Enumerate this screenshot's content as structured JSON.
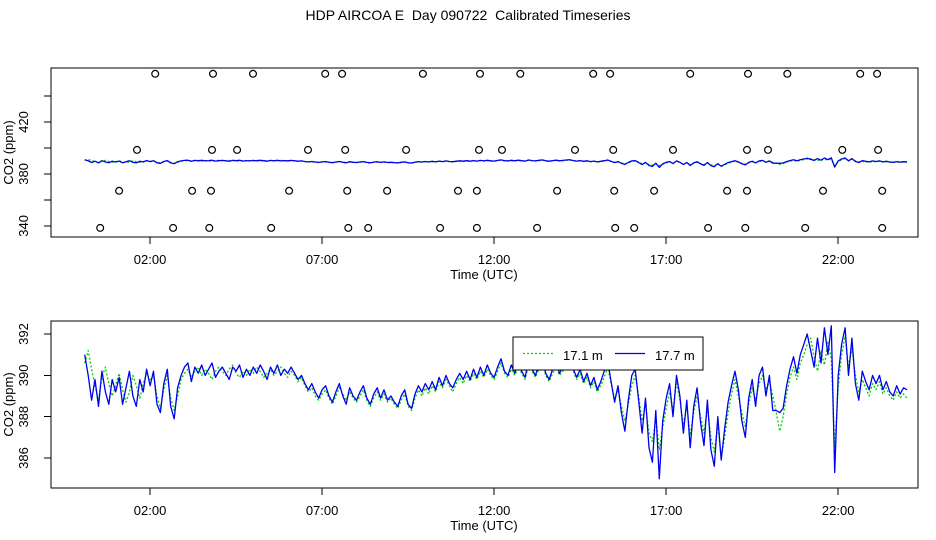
{
  "title": "HDP AIRCOA E  Day 090722  Calibrated Timeseries",
  "colors": {
    "series_17_1_m": "#00CD00",
    "series_17_7_m": "#0000EE",
    "axis": "#000000",
    "background": "#FFFFFF"
  },
  "series": [
    {
      "name": "17.1 m",
      "color": "#00CD00",
      "style": "dotted",
      "unit": "ppm",
      "t0": 0.1,
      "dt": 0.1,
      "values": [
        390.6,
        391.2,
        390.3,
        389.5,
        388.8,
        389.9,
        390.4,
        389.6,
        389.0,
        389.5,
        390.1,
        389.3,
        388.7,
        389.2,
        390.0,
        389.5,
        388.9,
        389.6,
        390.1,
        389.8,
        390.0,
        389.0,
        388.4,
        389.3,
        390.0,
        388.9,
        388.3,
        389.0,
        389.8,
        390.1,
        390.3,
        389.9,
        390.2,
        390.4,
        390.0,
        390.3,
        390.1,
        389.8,
        390.2,
        390.4,
        390.2,
        390.0,
        390.3,
        390.5,
        390.1,
        389.9,
        390.2,
        390.0,
        390.3,
        390.1,
        390.4,
        390.2,
        389.9,
        390.1,
        390.3,
        390.0,
        390.2,
        390.4,
        390.1,
        389.9,
        390.2,
        390.0,
        389.7,
        389.9,
        389.5,
        389.2,
        389.4,
        389.0,
        388.8,
        389.1,
        389.3,
        388.9,
        388.6,
        389.0,
        389.4,
        389.1,
        388.8,
        389.2,
        388.9,
        388.7,
        389.0,
        389.3,
        388.8,
        388.5,
        388.9,
        389.2,
        388.8,
        389.1,
        388.7,
        388.9,
        388.6,
        388.4,
        388.8,
        389.1,
        388.5,
        388.3,
        388.9,
        389.3,
        389.0,
        389.4,
        389.1,
        389.5,
        389.2,
        389.7,
        389.4,
        389.8,
        389.5,
        389.2,
        389.6,
        389.9,
        389.6,
        390.0,
        389.7,
        390.1,
        389.8,
        390.2,
        389.9,
        390.3,
        390.0,
        389.8,
        390.2,
        390.6,
        390.1,
        389.9,
        390.3,
        390.0,
        390.4,
        390.1,
        389.8,
        390.5,
        390.2,
        389.9,
        390.3,
        390.6,
        390.0,
        389.7,
        390.1,
        390.4,
        390.0,
        390.2,
        390.5,
        390.8,
        390.2,
        389.8,
        390.1,
        389.6,
        389.9,
        389.4,
        389.7,
        389.2,
        389.5,
        389.9,
        390.4,
        389.6,
        388.9,
        389.3,
        388.5,
        387.8,
        388.6,
        389.5,
        390.0,
        389.0,
        387.8,
        388.6,
        387.2,
        386.8,
        387.9,
        386.4,
        387.5,
        388.4,
        389.2,
        388.3,
        389.7,
        388.8,
        387.6,
        388.5,
        387.1,
        388.2,
        389.0,
        388.0,
        387.2,
        388.4,
        387.0,
        386.3,
        387.6,
        386.0,
        387.0,
        388.2,
        389.1,
        389.8,
        389.0,
        388.2,
        387.5,
        388.6,
        389.4,
        388.8,
        389.6,
        390.0,
        389.3,
        389.7,
        389.0,
        388.2,
        387.3,
        388.0,
        389.1,
        389.9,
        390.4,
        389.8,
        390.6,
        391.0,
        391.5,
        391.8,
        390.9,
        390.2,
        391.2,
        390.5,
        391.6,
        390.8,
        386.5,
        389.4,
        391.0,
        391.9,
        390.4,
        391.3,
        390.0,
        389.2,
        389.8,
        389.4,
        389.0,
        389.6,
        389.3,
        389.7,
        389.1,
        389.4,
        389.0,
        388.8,
        389.2,
        388.9,
        389.1,
        388.9
      ]
    },
    {
      "name": "17.7 m",
      "color": "#0000EE",
      "style": "solid",
      "unit": "ppm",
      "t0": 0.1,
      "dt": 0.1,
      "values": [
        391.0,
        390.0,
        388.8,
        389.8,
        388.5,
        390.2,
        389.2,
        388.6,
        389.8,
        389.2,
        389.9,
        388.6,
        389.4,
        390.2,
        389.0,
        388.5,
        389.8,
        389.2,
        390.3,
        389.5,
        390.2,
        388.6,
        388.2,
        389.6,
        390.3,
        388.5,
        387.9,
        389.4,
        390.0,
        390.4,
        390.6,
        389.7,
        390.4,
        390.1,
        390.5,
        390.0,
        390.3,
        390.6,
        389.9,
        390.2,
        390.4,
        390.1,
        389.8,
        390.4,
        390.2,
        390.5,
        389.9,
        390.3,
        390.0,
        390.4,
        390.1,
        390.5,
        390.2,
        389.8,
        390.4,
        390.1,
        390.5,
        390.0,
        390.3,
        390.1,
        390.4,
        390.1,
        389.8,
        390.0,
        389.6,
        389.3,
        389.6,
        389.2,
        388.9,
        389.3,
        389.5,
        389.0,
        388.7,
        389.2,
        389.6,
        389.0,
        388.6,
        389.4,
        389.0,
        388.8,
        389.2,
        389.5,
        388.9,
        388.6,
        389.1,
        389.4,
        388.9,
        389.3,
        388.8,
        389.0,
        388.7,
        388.5,
        389.0,
        389.3,
        388.6,
        388.4,
        389.1,
        389.5,
        389.2,
        389.6,
        389.3,
        389.7,
        389.3,
        389.9,
        389.5,
        390.0,
        389.6,
        389.4,
        389.8,
        390.1,
        389.8,
        390.2,
        389.8,
        390.3,
        389.9,
        390.4,
        390.0,
        390.5,
        390.1,
        389.9,
        390.4,
        390.8,
        390.2,
        390.0,
        390.5,
        390.1,
        390.6,
        390.2,
        389.9,
        390.7,
        390.3,
        390.0,
        390.5,
        390.8,
        390.1,
        389.8,
        390.3,
        390.6,
        390.1,
        390.4,
        390.7,
        391.0,
        390.3,
        389.9,
        390.3,
        389.7,
        390.1,
        389.5,
        389.9,
        389.3,
        389.7,
        390.2,
        390.7,
        389.7,
        388.7,
        389.5,
        388.2,
        387.3,
        388.8,
        390.0,
        390.3,
        388.8,
        387.2,
        388.9,
        386.5,
        385.8,
        388.3,
        385.0,
        387.8,
        388.9,
        389.6,
        388.0,
        390.0,
        389.0,
        387.2,
        388.8,
        386.5,
        388.5,
        389.4,
        387.7,
        386.6,
        388.8,
        386.4,
        385.6,
        388.0,
        385.9,
        387.4,
        388.7,
        389.5,
        390.2,
        389.3,
        387.8,
        387.0,
        388.9,
        389.8,
        388.5,
        390.0,
        390.4,
        389.0,
        390.0,
        388.3,
        388.3,
        388.2,
        388.4,
        389.5,
        390.3,
        390.9,
        390.1,
        391.0,
        391.5,
        392.0,
        391.2,
        390.4,
        391.8,
        390.6,
        392.3,
        391.0,
        392.4,
        385.3,
        390.0,
        391.5,
        392.3,
        390.0,
        391.8,
        389.6,
        388.8,
        390.2,
        389.7,
        389.3,
        390.0,
        389.6,
        390.0,
        389.3,
        389.7,
        389.2,
        389.0,
        389.5,
        389.1,
        389.4,
        389.3
      ]
    }
  ],
  "chart_data": [
    {
      "id": "calibrated-timeseries-overview",
      "type": "line",
      "xlabel": "Time (UTC)",
      "ylabel": "CO2 (ppm)",
      "xlim": [
        -0.88,
        24.32
      ],
      "ylim": [
        331.5,
        461.5
      ],
      "grid": false,
      "x_ticks": [
        {
          "t": 2,
          "label": "02:00"
        },
        {
          "t": 7,
          "label": "07:00"
        },
        {
          "t": 12,
          "label": "12:00"
        },
        {
          "t": 17,
          "label": "17:00"
        },
        {
          "t": 22,
          "label": "22:00"
        }
      ],
      "y_ticks": [
        {
          "v": 340,
          "label": "340"
        },
        {
          "v": 360,
          "label": ""
        },
        {
          "v": 380,
          "label": "380"
        },
        {
          "v": 400,
          "label": ""
        },
        {
          "v": 420,
          "label": "420"
        },
        {
          "v": 440,
          "label": ""
        }
      ],
      "calibration_circles": [
        {
          "level_ppm": 457.0,
          "times": [
            2.15,
            3.83,
            4.99,
            7.09,
            7.58,
            9.93,
            11.59,
            12.76,
            14.88,
            15.37,
            17.7,
            19.38,
            20.52,
            22.64,
            23.13
          ]
        },
        {
          "level_ppm": 398.5,
          "times": [
            1.62,
            3.8,
            4.53,
            6.59,
            7.67,
            9.44,
            11.56,
            12.23,
            14.35,
            15.46,
            17.2,
            19.35,
            19.96,
            22.12,
            23.16
          ]
        },
        {
          "level_ppm": 367.0,
          "times": [
            1.1,
            3.22,
            3.77,
            6.04,
            7.73,
            8.89,
            10.95,
            11.5,
            13.83,
            15.49,
            16.65,
            18.77,
            19.35,
            21.56,
            23.28
          ]
        },
        {
          "level_ppm": 338.5,
          "times": [
            0.55,
            2.67,
            3.72,
            5.52,
            7.76,
            8.34,
            10.43,
            11.5,
            13.25,
            15.52,
            16.07,
            18.22,
            19.3,
            21.04,
            23.28
          ]
        }
      ]
    },
    {
      "id": "calibrated-timeseries-detail",
      "type": "line",
      "xlabel": "Time (UTC)",
      "ylabel": "CO2 (ppm)",
      "xlim": [
        -0.88,
        24.32
      ],
      "ylim": [
        384.55,
        392.63
      ],
      "grid": false,
      "x_ticks": [
        {
          "t": 2,
          "label": "02:00"
        },
        {
          "t": 7,
          "label": "07:00"
        },
        {
          "t": 12,
          "label": "12:00"
        },
        {
          "t": 17,
          "label": "17:00"
        },
        {
          "t": 22,
          "label": "22:00"
        }
      ],
      "y_ticks": [
        {
          "v": 386,
          "label": "386"
        },
        {
          "v": 388,
          "label": "388"
        },
        {
          "v": 390,
          "label": "390"
        },
        {
          "v": 392,
          "label": "392"
        }
      ],
      "legend": {
        "position": "top-center",
        "labels": [
          "17.1 m",
          "17.7 m"
        ]
      }
    }
  ]
}
